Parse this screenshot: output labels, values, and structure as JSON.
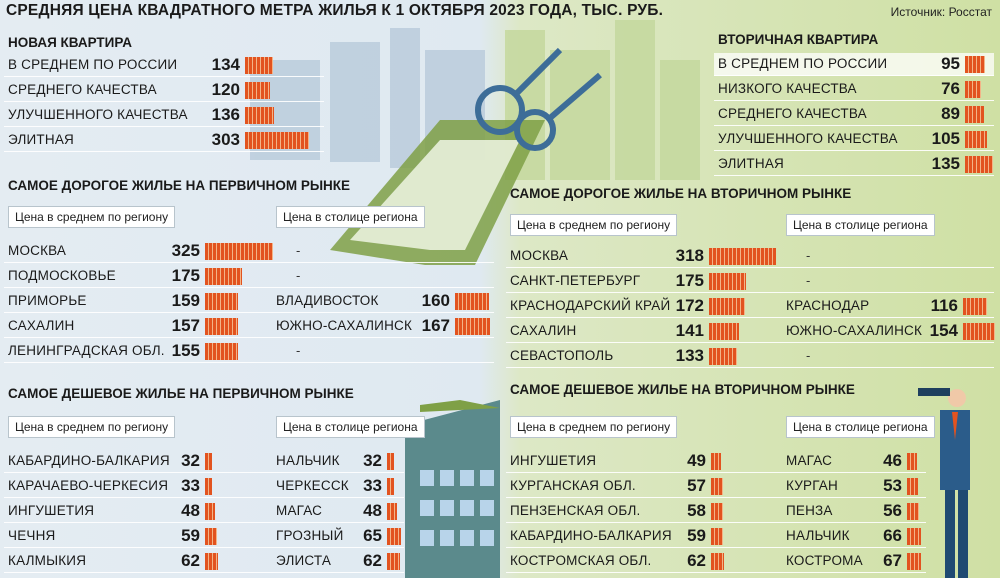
{
  "title": "СРЕДНЯЯ ЦЕНА КВАДРАТНОГО МЕТРА ЖИЛЬЯ К 1 ОКТЯБРЯ 2023 ГОДА, ТЫС. РУБ.",
  "source": "Источник: Росстат",
  "colors": {
    "bar": "#e2531f",
    "left_bg": "#e4ecf2",
    "right_bg": "#cfe0a4"
  },
  "chart_data": [
    {
      "type": "bar",
      "title": "НОВАЯ КВАРТИРА",
      "categories": [
        "В СРЕДНЕМ ПО РОССИИ",
        "СРЕДНЕГО КАЧЕСТВА",
        "УЛУЧШЕННОГО КАЧЕСТВА",
        "ЭЛИТНАЯ"
      ],
      "values": [
        134,
        120,
        136,
        303
      ]
    },
    {
      "type": "bar",
      "title": "ВТОРИЧНАЯ КВАРТИРА",
      "categories": [
        "В СРЕДНЕМ ПО РОССИИ",
        "НИЗКОГО КАЧЕСТВА",
        "СРЕДНЕГО КАЧЕСТВА",
        "УЛУЧШЕННОГО КАЧЕСТВА",
        "ЭЛИТНАЯ"
      ],
      "values": [
        95,
        76,
        89,
        105,
        135
      ]
    },
    {
      "type": "bar",
      "title": "САМОЕ ДОРОГОЕ ЖИЛЬЕ НА ПЕРВИЧНОМ РЫНКЕ",
      "region_header": "Цена в среднем по региону",
      "capital_header": "Цена в столице региона",
      "regions": [
        "МОСКВА",
        "ПОДМОСКОВЬЕ",
        "ПРИМОРЬЕ",
        "САХАЛИН",
        "ЛЕНИНГРАДСКАЯ ОБЛ."
      ],
      "region_values": [
        325,
        175,
        159,
        157,
        155
      ],
      "capitals": [
        "-",
        "-",
        "ВЛАДИВОСТОК",
        "ЮЖНО-САХАЛИНСК",
        "-"
      ],
      "capital_values": [
        null,
        null,
        160,
        167,
        null
      ]
    },
    {
      "type": "bar",
      "title": "САМОЕ ДОРОГОЕ ЖИЛЬЕ НА ВТОРИЧНОМ РЫНКЕ",
      "region_header": "Цена в среднем по региону",
      "capital_header": "Цена в столице региона",
      "regions": [
        "МОСКВА",
        "САНКТ-ПЕТЕРБУРГ",
        "КРАСНОДАРСКИЙ КРАЙ",
        "САХАЛИН",
        "СЕВАСТОПОЛЬ"
      ],
      "region_values": [
        318,
        175,
        172,
        141,
        133
      ],
      "capitals": [
        "-",
        "-",
        "КРАСНОДАР",
        "ЮЖНО-САХАЛИНСК",
        "-"
      ],
      "capital_values": [
        null,
        null,
        116,
        154,
        null
      ]
    },
    {
      "type": "bar",
      "title": "САМОЕ ДЕШЕВОЕ ЖИЛЬЕ НА ПЕРВИЧНОМ РЫНКЕ",
      "region_header": "Цена в среднем по региону",
      "capital_header": "Цена в столице региона",
      "regions": [
        "КАБАРДИНО-БАЛКАРИЯ",
        "КАРАЧАЕВО-ЧЕРКЕСИЯ",
        "ИНГУШЕТИЯ",
        "ЧЕЧНЯ",
        "КАЛМЫКИЯ"
      ],
      "region_values": [
        32,
        33,
        48,
        59,
        62
      ],
      "capitals": [
        "НАЛЬЧИК",
        "ЧЕРКЕССК",
        "МАГАС",
        "ГРОЗНЫЙ",
        "ЭЛИСТА"
      ],
      "capital_values": [
        32,
        33,
        48,
        65,
        62
      ]
    },
    {
      "type": "bar",
      "title": "САМОЕ ДЕШЕВОЕ ЖИЛЬЕ НА ВТОРИЧНОМ РЫНКЕ",
      "region_header": "Цена в среднем по региону",
      "capital_header": "Цена в столице региона",
      "regions": [
        "ИНГУШЕТИЯ",
        "КУРГАНСКАЯ ОБЛ.",
        "ПЕНЗЕНСКАЯ ОБЛ.",
        "КАБАРДИНО-БАЛКАРИЯ",
        "КОСТРОМСКАЯ ОБЛ."
      ],
      "region_values": [
        49,
        57,
        58,
        59,
        62
      ],
      "capitals": [
        "МАГАС",
        "КУРГАН",
        "ПЕНЗА",
        "НАЛЬЧИК",
        "КОСТРОМА"
      ],
      "capital_values": [
        46,
        53,
        56,
        66,
        67
      ]
    }
  ]
}
